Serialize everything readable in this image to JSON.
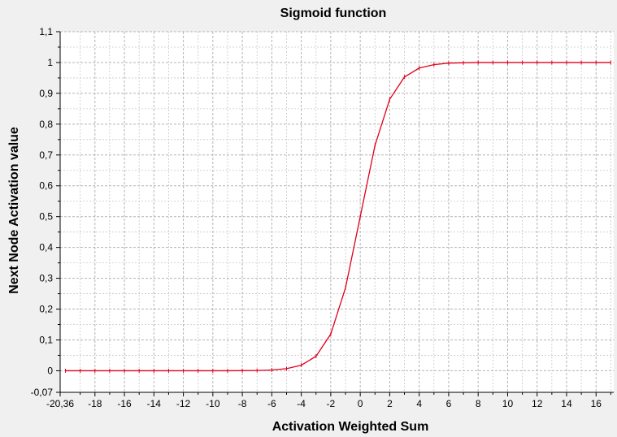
{
  "chart_data": {
    "type": "line",
    "title": "Sigmoid function",
    "xlabel": "Activation Weighted Sum",
    "ylabel": "Next Node Activation value",
    "xlim": [
      -20.36,
      17.2
    ],
    "ylim": [
      -0.07,
      1.1
    ],
    "grid": true,
    "x_ticks": [
      {
        "value": -20.36,
        "label": "-20,36"
      },
      {
        "value": -18,
        "label": "-18"
      },
      {
        "value": -16,
        "label": "-16"
      },
      {
        "value": -14,
        "label": "-14"
      },
      {
        "value": -12,
        "label": "-12"
      },
      {
        "value": -10,
        "label": "-10"
      },
      {
        "value": -8,
        "label": "-8"
      },
      {
        "value": -6,
        "label": "-6"
      },
      {
        "value": -4,
        "label": "-4"
      },
      {
        "value": -2,
        "label": "-2"
      },
      {
        "value": 0,
        "label": "0"
      },
      {
        "value": 2,
        "label": "2"
      },
      {
        "value": 4,
        "label": "4"
      },
      {
        "value": 6,
        "label": "6"
      },
      {
        "value": 8,
        "label": "8"
      },
      {
        "value": 10,
        "label": "10"
      },
      {
        "value": 12,
        "label": "12"
      },
      {
        "value": 14,
        "label": "14"
      },
      {
        "value": 16,
        "label": "16"
      }
    ],
    "y_ticks": [
      {
        "value": -0.07,
        "label": "-0,07"
      },
      {
        "value": 0,
        "label": "0"
      },
      {
        "value": 0.1,
        "label": "0,1"
      },
      {
        "value": 0.2,
        "label": "0,2"
      },
      {
        "value": 0.3,
        "label": "0,3"
      },
      {
        "value": 0.4,
        "label": "0,4"
      },
      {
        "value": 0.5,
        "label": "0,5"
      },
      {
        "value": 0.6,
        "label": "0,6"
      },
      {
        "value": 0.7,
        "label": "0,7"
      },
      {
        "value": 0.8,
        "label": "0,8"
      },
      {
        "value": 0.9,
        "label": "0,9"
      },
      {
        "value": 1.0,
        "label": "1"
      },
      {
        "value": 1.1,
        "label": "1,1"
      }
    ],
    "series": [
      {
        "color": "#e0001b",
        "x": [
          -20,
          -19,
          -18,
          -17,
          -16,
          -15,
          -14,
          -13,
          -12,
          -11,
          -10,
          -9,
          -8,
          -7,
          -6,
          -5,
          -4,
          -3,
          -2,
          -1,
          0,
          1,
          2,
          3,
          4,
          5,
          6,
          7,
          8,
          9,
          10,
          11,
          12,
          13,
          14,
          15,
          16,
          17
        ],
        "y": [
          0,
          0,
          0,
          0,
          0,
          0,
          0,
          0,
          0,
          0,
          0,
          0,
          0.0003,
          0.0009,
          0.0025,
          0.0067,
          0.018,
          0.047,
          0.119,
          0.269,
          0.5,
          0.731,
          0.881,
          0.953,
          0.982,
          0.993,
          0.998,
          0.999,
          1,
          1,
          1,
          1,
          1,
          1,
          1,
          1,
          1,
          1
        ]
      }
    ]
  }
}
